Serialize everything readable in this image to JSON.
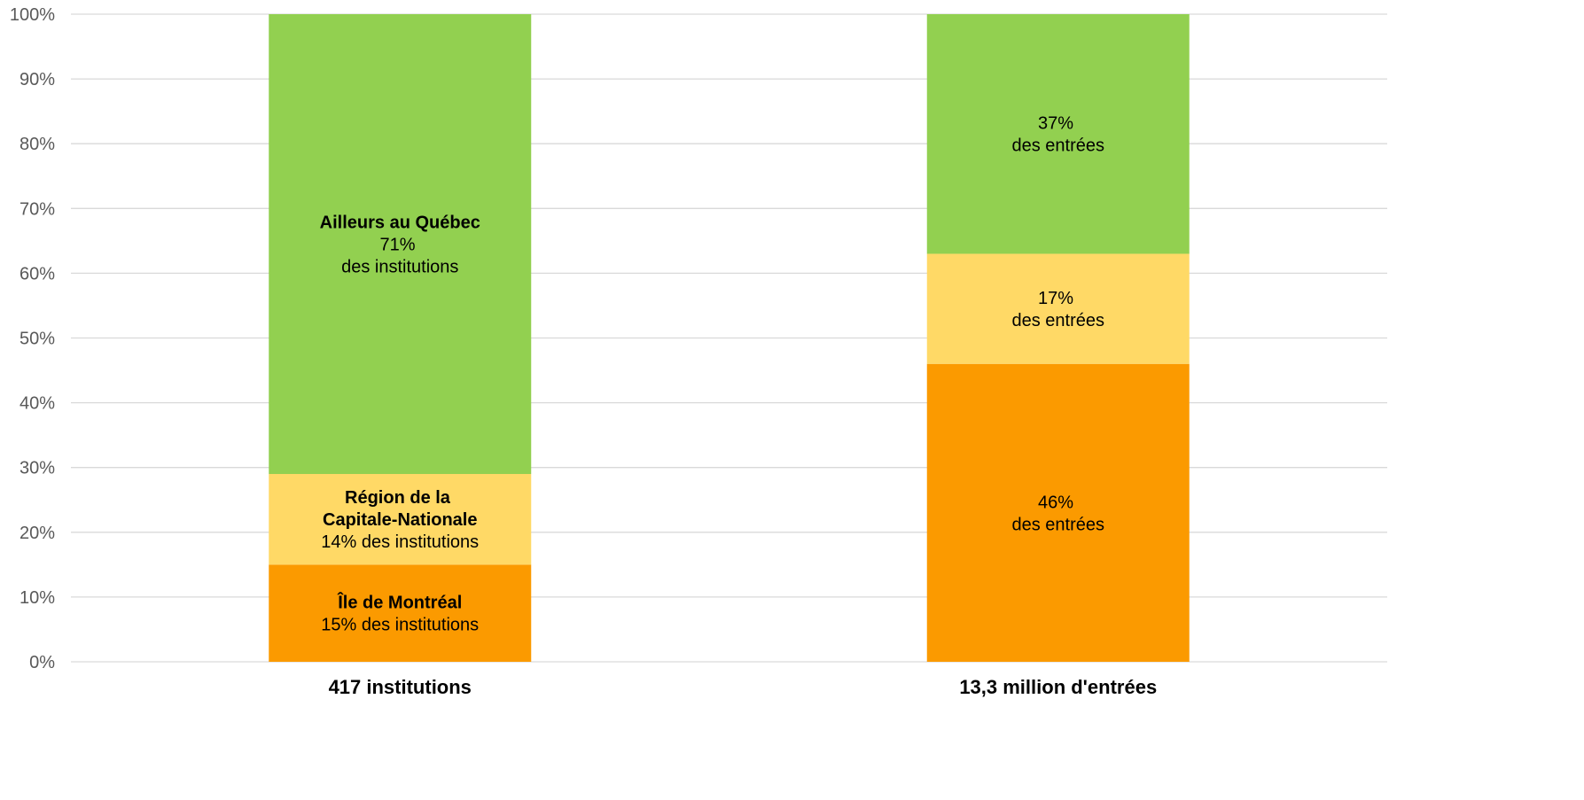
{
  "chart_data": {
    "type": "stacked_bar_100",
    "categories": [
      "417 institutions",
      "13,3 million d'entrées"
    ],
    "series": [
      {
        "name": "Île de Montréal",
        "color": "#fb9a00",
        "values": [
          15,
          46
        ],
        "value_labels": [
          "15% des institutions",
          "46%\ndes entrées"
        ]
      },
      {
        "name": "Région de la Capitale-Nationale",
        "color": "#ffd966",
        "values": [
          14,
          17
        ],
        "value_labels": [
          "14% des institutions",
          "17%\ndes entrées"
        ]
      },
      {
        "name": "Ailleurs au Québec",
        "color": "#92d050",
        "values": [
          71,
          37
        ],
        "value_labels": [
          "71%\ndes institutions",
          "37%\ndes entrées"
        ]
      }
    ],
    "ylim": [
      0,
      100
    ],
    "yticks": [
      {
        "value": 0,
        "label": "0%"
      },
      {
        "value": 10,
        "label": "10%"
      },
      {
        "value": 20,
        "label": "20%"
      },
      {
        "value": 30,
        "label": "30%"
      },
      {
        "value": 40,
        "label": "40%"
      },
      {
        "value": 50,
        "label": "50%"
      },
      {
        "value": 60,
        "label": "60%"
      },
      {
        "value": 70,
        "label": "70%"
      },
      {
        "value": 80,
        "label": "80%"
      },
      {
        "value": 90,
        "label": "90%"
      },
      {
        "value": 100,
        "label": "100%"
      }
    ],
    "grid": true
  }
}
